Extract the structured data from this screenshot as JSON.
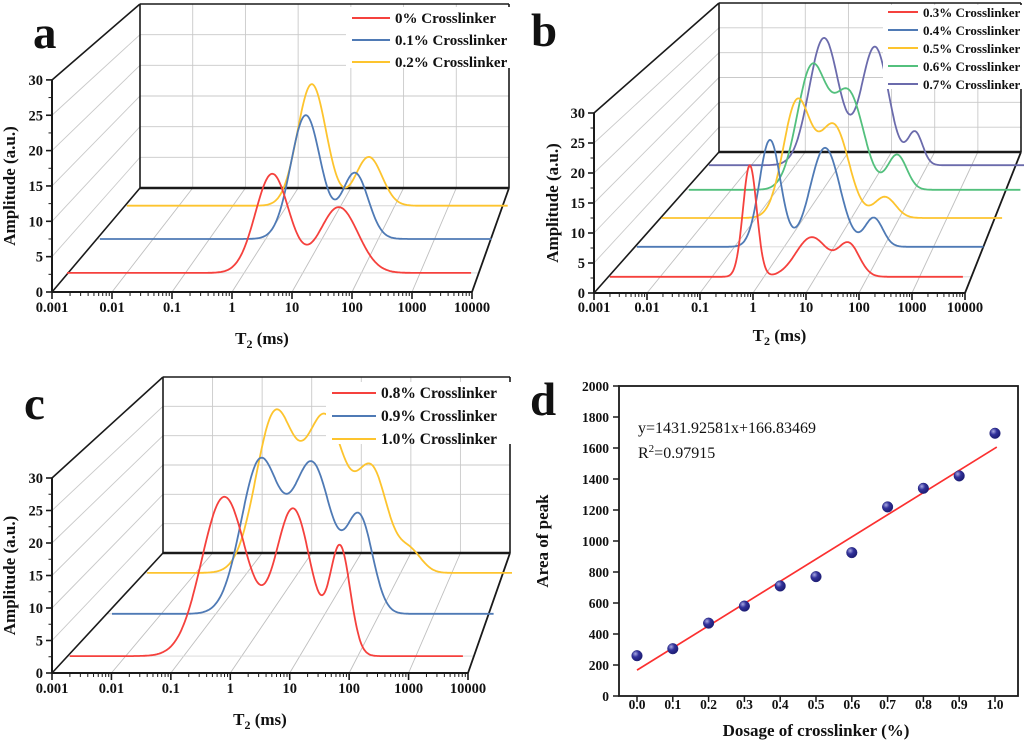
{
  "figure": {
    "background": "#ffffff"
  },
  "chart_data": [
    {
      "panel_letter": "a",
      "type": "line",
      "projection": "3d-waterfall",
      "x_axis": {
        "label_main": "T",
        "label_sub": "2",
        "label_rest": " (ms)",
        "scale": "log",
        "tick_labels": [
          "0.001",
          "0.01",
          "0.1",
          "1",
          "10",
          "100",
          "1000",
          "10000"
        ],
        "range_log10": [
          -3,
          4
        ]
      },
      "y_axis": {
        "label": "Amplitude (a.u.)",
        "tick_labels": [
          "0",
          "5",
          "10",
          "15",
          "20",
          "25",
          "30"
        ],
        "range": [
          0,
          30
        ],
        "major_step": 5
      },
      "legend_position": "top-right",
      "grid": true,
      "series": [
        {
          "name": "0% Crosslinker",
          "color": "#f5413d",
          "baseline_offset": 2.7,
          "x_start_log10": -2.75,
          "x_end_log10": 4.0,
          "peaks": [
            {
              "center_log10_ms": 0.67,
              "sigma_decades": 0.28,
              "height": 14.0
            },
            {
              "center_log10_ms": 1.78,
              "sigma_decades": 0.32,
              "height": 9.3
            }
          ]
        },
        {
          "name": "0.1% Crosslinker",
          "color": "#4f7ab5",
          "baseline_offset": 7.5,
          "x_start_log10": -2.2,
          "x_end_log10": 4.33,
          "peaks": [
            {
              "center_log10_ms": 1.23,
              "sigma_decades": 0.25,
              "height": 17.5
            },
            {
              "center_log10_ms": 2.05,
              "sigma_decades": 0.22,
              "height": 9.3
            }
          ]
        },
        {
          "name": "0.2% Crosslinker",
          "color": "#fdc42e",
          "baseline_offset": 12.2,
          "x_start_log10": -1.75,
          "x_end_log10": 4.6,
          "peaks": [
            {
              "center_log10_ms": 1.33,
              "sigma_decades": 0.24,
              "height": 17.2
            },
            {
              "center_log10_ms": 2.28,
              "sigma_decades": 0.22,
              "height": 6.9
            }
          ]
        }
      ]
    },
    {
      "panel_letter": "b",
      "type": "line",
      "projection": "3d-waterfall",
      "x_axis": {
        "label_main": "T",
        "label_sub": "2",
        "label_rest": " (ms)",
        "scale": "log",
        "tick_labels": [
          "0.001",
          "0.01",
          "0.1",
          "1",
          "10",
          "100",
          "1000",
          "10000"
        ],
        "range_log10": [
          -3,
          4
        ]
      },
      "y_axis": {
        "label": "Amplitude (a.u.)",
        "tick_labels": [
          "0",
          "5",
          "10",
          "15",
          "20",
          "25",
          "30"
        ],
        "range": [
          0,
          30
        ],
        "major_step": 5
      },
      "legend_position": "top-right",
      "grid": true,
      "series": [
        {
          "name": "0.3% Crosslinker",
          "color": "#f5413d",
          "baseline_offset": 2.7,
          "x_start_log10": -2.7,
          "x_end_log10": 3.97,
          "peaks": [
            {
              "center_log10_ms": -0.06,
              "sigma_decades": 0.13,
              "height": 18.6
            },
            {
              "center_log10_ms": 1.11,
              "sigma_decades": 0.3,
              "height": 6.6
            },
            {
              "center_log10_ms": 1.81,
              "sigma_decades": 0.2,
              "height": 5.3
            }
          ]
        },
        {
          "name": "0.4% Crosslinker",
          "color": "#4f7ab5",
          "baseline_offset": 7.7,
          "x_start_log10": -2.19,
          "x_end_log10": 4.35,
          "peaks": [
            {
              "center_log10_ms": 0.32,
              "sigma_decades": 0.2,
              "height": 17.8
            },
            {
              "center_log10_ms": 1.36,
              "sigma_decades": 0.28,
              "height": 16.5
            },
            {
              "center_log10_ms": 2.28,
              "sigma_decades": 0.17,
              "height": 4.8
            }
          ]
        },
        {
          "name": "0.5% Crosslinker",
          "color": "#fdc42e",
          "baseline_offset": 12.5,
          "x_start_log10": -1.72,
          "x_end_log10": 4.7,
          "peaks": [
            {
              "center_log10_ms": 0.83,
              "sigma_decades": 0.26,
              "height": 19.2
            },
            {
              "center_log10_ms": 1.53,
              "sigma_decades": 0.28,
              "height": 15.2
            },
            {
              "center_log10_ms": 2.49,
              "sigma_decades": 0.2,
              "height": 3.5
            }
          ]
        },
        {
          "name": "0.6% Crosslinker",
          "color": "#53c07d",
          "baseline_offset": 17.2,
          "x_start_log10": -1.21,
          "x_end_log10": 5.05,
          "peaks": [
            {
              "center_log10_ms": 1.11,
              "sigma_decades": 0.28,
              "height": 20.3
            },
            {
              "center_log10_ms": 1.81,
              "sigma_decades": 0.28,
              "height": 15.8
            },
            {
              "center_log10_ms": 2.72,
              "sigma_decades": 0.18,
              "height": 5.8
            }
          ]
        },
        {
          "name": "0.7% Crosslinker",
          "color": "#6b6bac",
          "baseline_offset": 21.3,
          "x_start_log10": -0.83,
          "x_end_log10": 5.4,
          "peaks": [
            {
              "center_log10_ms": 1.34,
              "sigma_decades": 0.28,
              "height": 21.2
            },
            {
              "center_log10_ms": 2.3,
              "sigma_decades": 0.26,
              "height": 19.7
            },
            {
              "center_log10_ms": 3.06,
              "sigma_decades": 0.14,
              "height": 5.4
            }
          ]
        }
      ]
    },
    {
      "panel_letter": "c",
      "type": "line",
      "projection": "3d-waterfall",
      "x_axis": {
        "label_main": "T",
        "label_sub": "2",
        "label_rest": " (ms)",
        "scale": "log",
        "tick_labels": [
          "0.001",
          "0.01",
          "0.1",
          "1",
          "10",
          "100",
          "1000",
          "10000"
        ],
        "range_log10": [
          -3,
          4
        ]
      },
      "y_axis": {
        "label": "Amplitude (a.u.)",
        "tick_labels": [
          "0",
          "5",
          "10",
          "15",
          "20",
          "25",
          "30"
        ],
        "range": [
          0,
          30
        ],
        "major_step": 5
      },
      "legend_position": "top-right",
      "grid": true,
      "series": [
        {
          "name": "0.8% Crosslinker",
          "color": "#f5413d",
          "baseline_offset": 2.6,
          "x_start_log10": -2.7,
          "x_end_log10": 3.92,
          "peaks": [
            {
              "center_log10_ms": -0.1,
              "sigma_decades": 0.38,
              "height": 24.5
            },
            {
              "center_log10_ms": 1.06,
              "sigma_decades": 0.3,
              "height": 22.5
            },
            {
              "center_log10_ms": 1.85,
              "sigma_decades": 0.17,
              "height": 16.4
            }
          ]
        },
        {
          "name": "0.9% Crosslinker",
          "color": "#4f7ab5",
          "baseline_offset": 9.1,
          "x_start_log10": -1.99,
          "x_end_log10": 4.43,
          "peaks": [
            {
              "center_log10_ms": 0.5,
              "sigma_decades": 0.32,
              "height": 23.3
            },
            {
              "center_log10_ms": 1.38,
              "sigma_decades": 0.33,
              "height": 22.9
            },
            {
              "center_log10_ms": 2.18,
              "sigma_decades": 0.22,
              "height": 14.2
            }
          ]
        },
        {
          "name": "1.0% Crosslinker",
          "color": "#fdc42e",
          "baseline_offset": 15.4,
          "x_start_log10": -1.4,
          "x_end_log10": 4.9,
          "peaks": [
            {
              "center_log10_ms": 0.75,
              "sigma_decades": 0.32,
              "height": 24.2
            },
            {
              "center_log10_ms": 1.6,
              "sigma_decades": 0.33,
              "height": 23.6
            },
            {
              "center_log10_ms": 2.39,
              "sigma_decades": 0.26,
              "height": 15.2
            },
            {
              "center_log10_ms": 3.02,
              "sigma_decades": 0.2,
              "height": 3.3
            }
          ]
        }
      ]
    },
    {
      "panel_letter": "d",
      "type": "scatter",
      "x_axis": {
        "label": "Dosage of crosslinker (%)",
        "tick_labels": [
          "0.0",
          "0.1",
          "0.2",
          "0.3",
          "0.4",
          "0.5",
          "0.6",
          "0.7",
          "0.8",
          "0.9",
          "1.0"
        ],
        "range": [
          0,
          1
        ]
      },
      "y_axis": {
        "label": "Area of peak",
        "tick_labels": [
          "0",
          "200",
          "400",
          "600",
          "800",
          "1000",
          "1200",
          "1400",
          "1600",
          "1800",
          "2000"
        ],
        "range": [
          0,
          2000
        ]
      },
      "points": {
        "x": [
          0.0,
          0.1,
          0.2,
          0.3,
          0.4,
          0.5,
          0.6,
          0.7,
          0.8,
          0.9,
          1.0
        ],
        "y": [
          260,
          305,
          470,
          580,
          710,
          770,
          925,
          1220,
          1340,
          1420,
          1695
        ],
        "color": "#32329b",
        "highlight": "#a9a9e2"
      },
      "fit": {
        "slope": 1431.92581,
        "intercept": 166.83469,
        "x_range": [
          0.0,
          1.005
        ],
        "color": "#fb3030",
        "equation_label": "y=1431.92581x+166.83469",
        "r2_base": "R",
        "r2_sup": "2",
        "r2_rest": "=0.97915"
      },
      "grid": false,
      "frame": "full-box"
    }
  ]
}
